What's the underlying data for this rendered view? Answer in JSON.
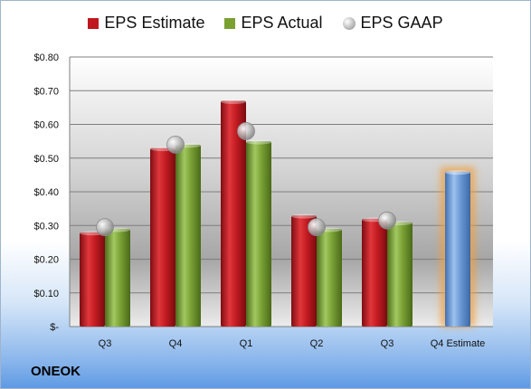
{
  "chart_data": {
    "type": "bar",
    "categories": [
      "Q3",
      "Q4",
      "Q1",
      "Q2",
      "Q3",
      "Q4 Estimate"
    ],
    "series": [
      {
        "name": "EPS Estimate",
        "values": [
          0.28,
          0.53,
          0.67,
          0.33,
          0.32,
          null
        ]
      },
      {
        "name": "EPS Actual",
        "values": [
          0.29,
          0.54,
          0.55,
          0.29,
          0.31,
          null
        ]
      },
      {
        "name": "EPS GAAP",
        "values": [
          0.295,
          0.54,
          0.58,
          0.295,
          0.315,
          null
        ]
      }
    ],
    "q4_estimate_value": 0.46,
    "yticks": [
      "$-",
      "$0.10",
      "$0.20",
      "$0.30",
      "$0.40",
      "$0.50",
      "$0.60",
      "$0.70",
      "$0.80"
    ],
    "ylim": [
      0,
      0.8
    ],
    "grid": true,
    "legend": "top",
    "colors": {
      "estimate": "#c0181e",
      "actual": "#7aa032",
      "gaap": "#a8a8a8",
      "q4_estimate": "#6c9ad6",
      "q4_glow": "#f0a040"
    }
  },
  "legend": {
    "estimate": "EPS Estimate",
    "actual": "EPS Actual",
    "gaap": "EPS GAAP"
  },
  "company": "ONEOK"
}
